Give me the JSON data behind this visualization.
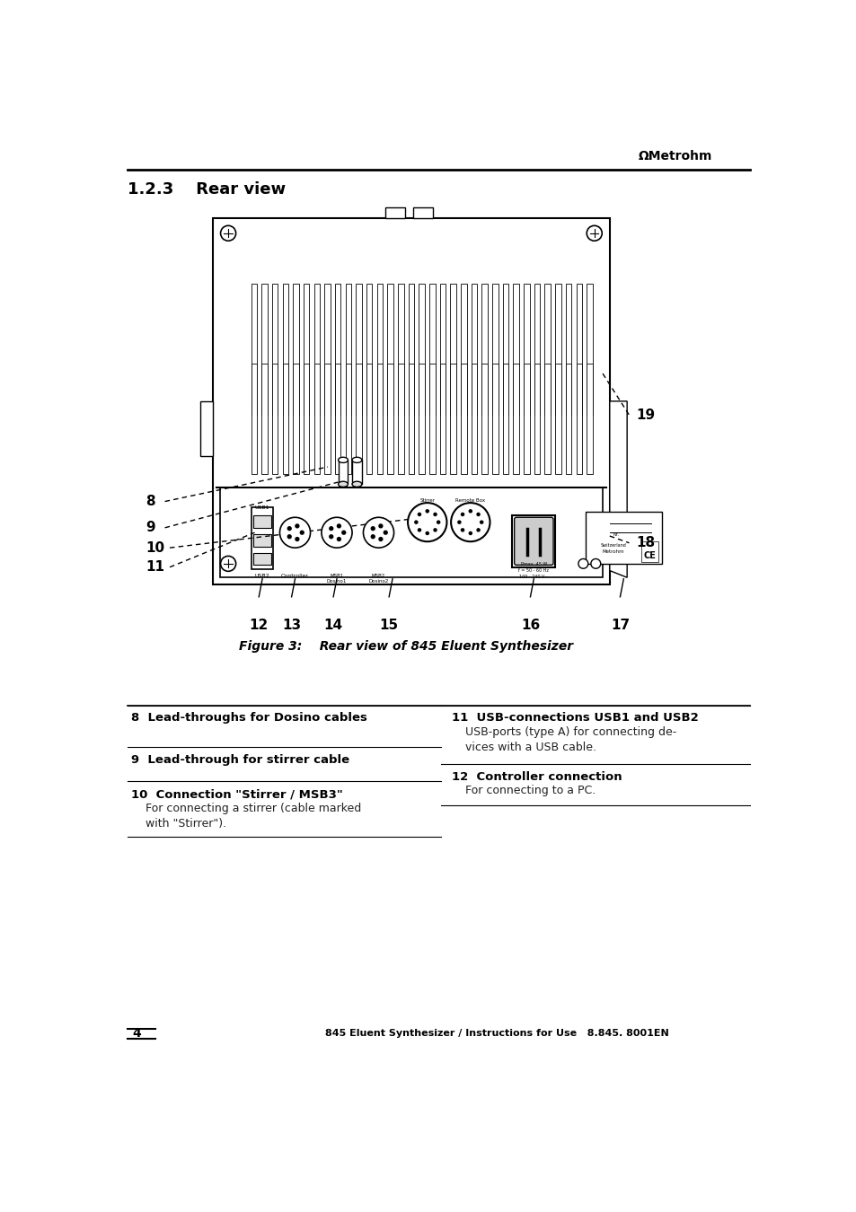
{
  "header_logo_text": "ΩMetrohm",
  "figure_caption": "Figure 3:    Rear view of 845 Eluent Synthesizer",
  "footer_page": "4",
  "footer_right": "845 Eluent Synthesizer / Instructions for Use   8.845. 8001EN",
  "section_title": "1.2.3    Rear view",
  "bg_color": "#ffffff"
}
